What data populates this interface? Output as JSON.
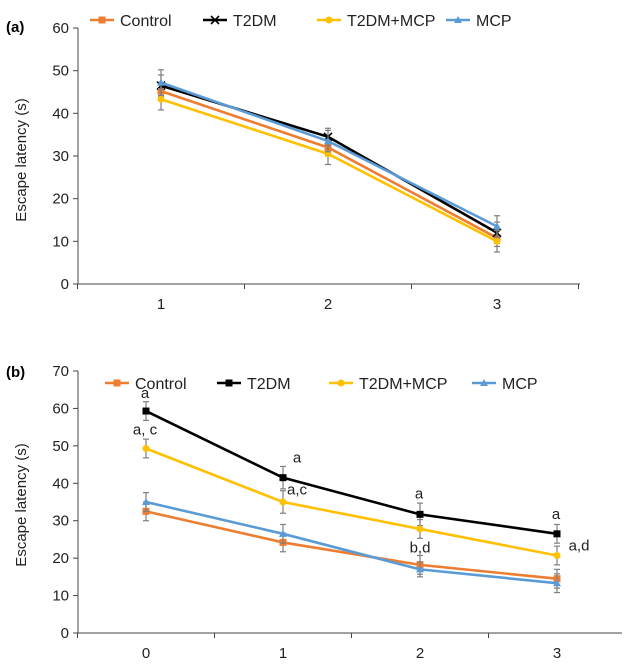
{
  "chart_data": [
    {
      "panel": "(a)",
      "type": "line",
      "ylabel": "Escape latency (s)",
      "xlabel": "",
      "categories": [
        "1",
        "2",
        "3"
      ],
      "ylim": [
        0,
        60
      ],
      "yticks": [
        "0",
        "10",
        "20",
        "30",
        "40",
        "50",
        "60"
      ],
      "legend_position": "top",
      "grid": false,
      "series": [
        {
          "name": "Control",
          "color": "#ED7D31",
          "marker": "square",
          "values": [
            45.2,
            32.0,
            10.8
          ],
          "errors": [
            2.0,
            2.0,
            2.0
          ]
        },
        {
          "name": "T2DM",
          "color": "#000000",
          "marker": "x",
          "values": [
            46.5,
            34.5,
            12.0
          ],
          "errors": [
            2.5,
            2.0,
            2.5
          ]
        },
        {
          "name": "T2DM+MCP",
          "color": "#FFC000",
          "marker": "circle",
          "values": [
            43.3,
            30.5,
            10.0
          ],
          "errors": [
            2.5,
            2.5,
            2.5
          ]
        },
        {
          "name": "MCP",
          "color": "#5B9BD5",
          "marker": "triangle",
          "values": [
            47.2,
            33.5,
            13.5
          ],
          "errors": [
            3.0,
            2.5,
            2.5
          ]
        }
      ],
      "annotations": []
    },
    {
      "panel": "(b)",
      "type": "line",
      "ylabel": "Escape latency (s)",
      "xlabel": "",
      "categories": [
        "0",
        "1",
        "2",
        "3"
      ],
      "ylim": [
        0,
        70
      ],
      "yticks": [
        "0",
        "10",
        "20",
        "30",
        "40",
        "50",
        "60",
        "70"
      ],
      "legend_position": "top",
      "grid": false,
      "series": [
        {
          "name": "Control",
          "color": "#ED7D31",
          "marker": "square",
          "values": [
            32.5,
            24.2,
            18.2,
            14.5
          ],
          "errors": [
            2.5,
            2.5,
            2.5,
            2.5
          ]
        },
        {
          "name": "T2DM",
          "color": "#000000",
          "marker": "square",
          "values": [
            59.3,
            41.5,
            31.7,
            26.5
          ],
          "errors": [
            2.5,
            3.0,
            3.0,
            2.5
          ]
        },
        {
          "name": "T2DM+MCP",
          "color": "#FFC000",
          "marker": "circle",
          "values": [
            49.3,
            35.0,
            27.8,
            20.7
          ],
          "errors": [
            2.5,
            3.0,
            2.5,
            2.5
          ]
        },
        {
          "name": "MCP",
          "color": "#5B9BD5",
          "marker": "triangle",
          "values": [
            35.0,
            26.5,
            17.0,
            13.3
          ],
          "errors": [
            2.5,
            2.5,
            2.0,
            2.5
          ]
        }
      ],
      "annotations": [
        {
          "text": "a",
          "x": "0",
          "y": 62.8
        },
        {
          "text": "a, c",
          "x": "0",
          "y": 53.0
        },
        {
          "text": "a",
          "x": "1",
          "y": 45.5
        },
        {
          "text": "a,c",
          "x": "1",
          "y": 37.0
        },
        {
          "text": "a",
          "x": "2",
          "y": 36.0
        },
        {
          "text": "b,d",
          "x": "2",
          "y": 21.5
        },
        {
          "text": "a",
          "x": "3",
          "y": 30.5
        },
        {
          "text": "a,d",
          "x": "3",
          "y": 22.0
        }
      ]
    }
  ]
}
